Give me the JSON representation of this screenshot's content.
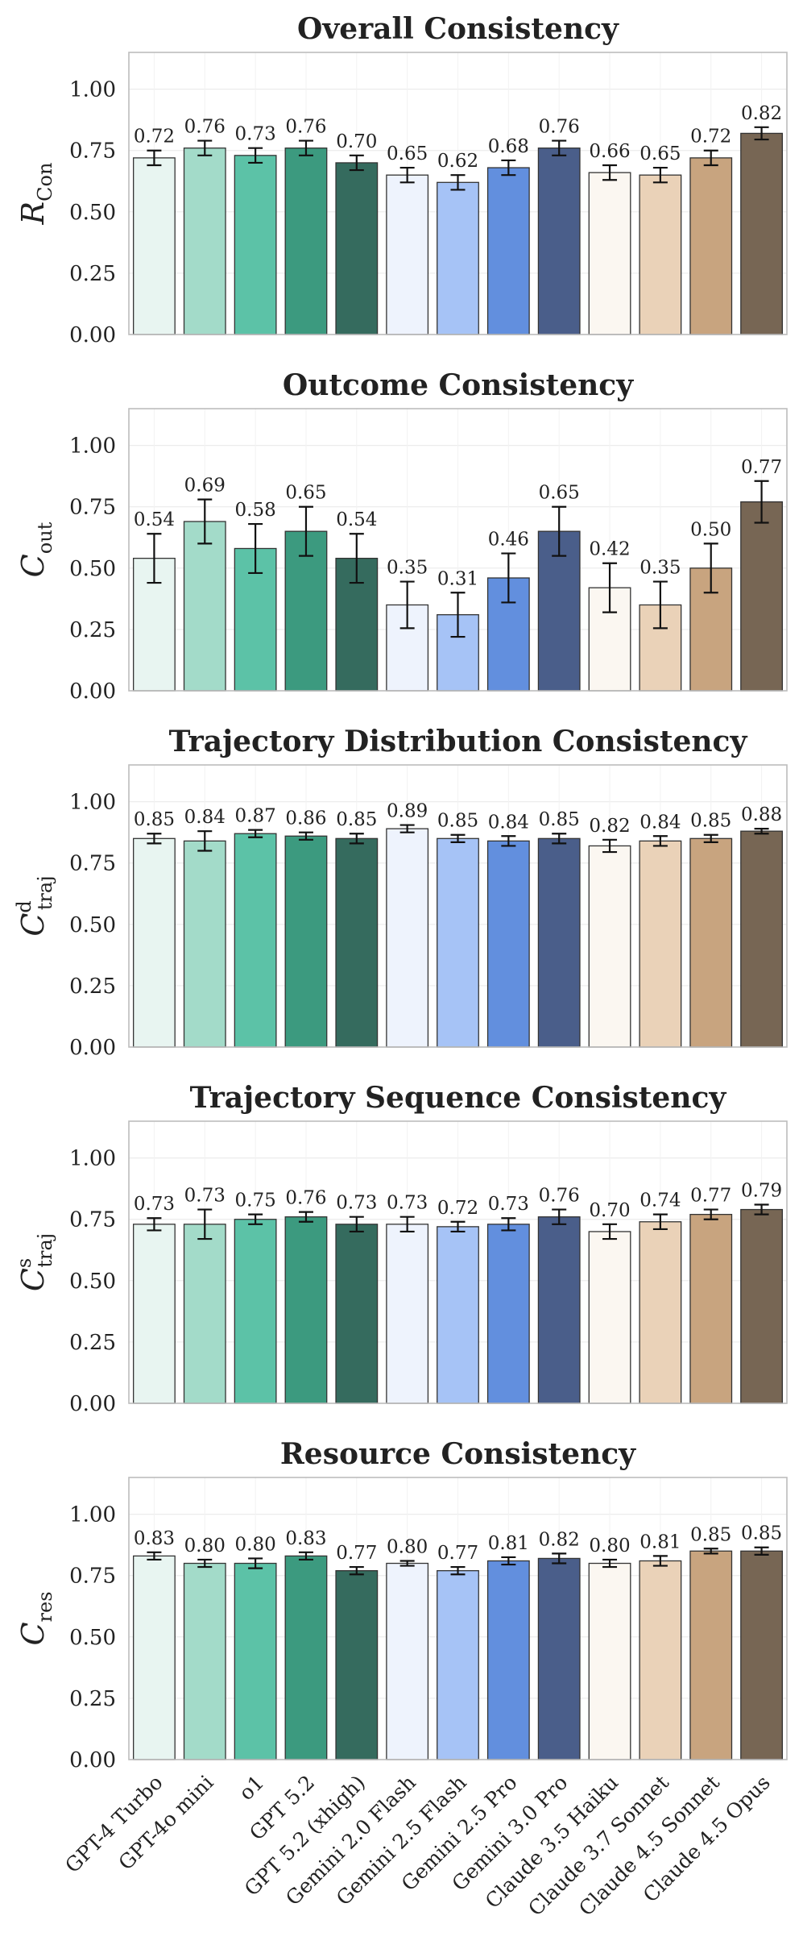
{
  "colors": [
    "#e8f5f1",
    "#a3dbc9",
    "#5cc2a7",
    "#3c9a7f",
    "#356b5e",
    "#eef3fd",
    "#a6c3f6",
    "#628fde",
    "#4a5e8a",
    "#fbf7f1",
    "#ead2b8",
    "#c8a47f",
    "#776654"
  ],
  "chart_data": [
    {
      "type": "bar",
      "title": "Overall Consistency",
      "ylabel": {
        "main": "R",
        "sub": "Con",
        "sup": ""
      },
      "ylim": [
        0,
        1.15
      ],
      "yticks": [
        "0.00",
        "0.25",
        "0.50",
        "0.75",
        "1.00"
      ],
      "grid": true,
      "categories": [
        "GPT-4 Turbo",
        "GPT-4o mini",
        "o1",
        "GPT 5.2",
        "GPT 5.2 (xhigh)",
        "Gemini 2.0 Flash",
        "Gemini 2.5 Flash",
        "Gemini 2.5 Pro",
        "Gemini 3.0 Pro",
        "Claude 3.5 Haiku",
        "Claude 3.7 Sonnet",
        "Claude 4.5 Sonnet",
        "Claude 4.5 Opus"
      ],
      "values": [
        0.72,
        0.76,
        0.73,
        0.76,
        0.7,
        0.65,
        0.62,
        0.68,
        0.76,
        0.66,
        0.65,
        0.72,
        0.82
      ],
      "errors": [
        0.03,
        0.03,
        0.03,
        0.03,
        0.03,
        0.03,
        0.03,
        0.03,
        0.03,
        0.03,
        0.03,
        0.03,
        0.025
      ],
      "labels": [
        "0.72",
        "0.76",
        "0.73",
        "0.76",
        "0.70",
        "0.65",
        "0.62",
        "0.68",
        "0.76",
        "0.66",
        "0.65",
        "0.72",
        "0.82"
      ]
    },
    {
      "type": "bar",
      "title": "Outcome Consistency",
      "ylabel": {
        "main": "C",
        "sub": "out",
        "sup": ""
      },
      "ylim": [
        0,
        1.15
      ],
      "yticks": [
        "0.00",
        "0.25",
        "0.50",
        "0.75",
        "1.00"
      ],
      "grid": true,
      "categories": [
        "GPT-4 Turbo",
        "GPT-4o mini",
        "o1",
        "GPT 5.2",
        "GPT 5.2 (xhigh)",
        "Gemini 2.0 Flash",
        "Gemini 2.5 Flash",
        "Gemini 2.5 Pro",
        "Gemini 3.0 Pro",
        "Claude 3.5 Haiku",
        "Claude 3.7 Sonnet",
        "Claude 4.5 Sonnet",
        "Claude 4.5 Opus"
      ],
      "values": [
        0.54,
        0.69,
        0.58,
        0.65,
        0.54,
        0.35,
        0.31,
        0.46,
        0.65,
        0.42,
        0.35,
        0.5,
        0.77
      ],
      "errors": [
        0.1,
        0.09,
        0.1,
        0.1,
        0.1,
        0.095,
        0.09,
        0.1,
        0.1,
        0.1,
        0.095,
        0.1,
        0.085
      ],
      "labels": [
        "0.54",
        "0.69",
        "0.58",
        "0.65",
        "0.54",
        "0.35",
        "0.31",
        "0.46",
        "0.65",
        "0.42",
        "0.35",
        "0.50",
        "0.77"
      ]
    },
    {
      "type": "bar",
      "title": "Trajectory Distribution Consistency",
      "ylabel": {
        "main": "C",
        "sub": "traj",
        "sup": "d"
      },
      "ylim": [
        0,
        1.15
      ],
      "yticks": [
        "0.00",
        "0.25",
        "0.50",
        "0.75",
        "1.00"
      ],
      "grid": true,
      "categories": [
        "GPT-4 Turbo",
        "GPT-4o mini",
        "o1",
        "GPT 5.2",
        "GPT 5.2 (xhigh)",
        "Gemini 2.0 Flash",
        "Gemini 2.5 Flash",
        "Gemini 2.5 Pro",
        "Gemini 3.0 Pro",
        "Claude 3.5 Haiku",
        "Claude 3.7 Sonnet",
        "Claude 4.5 Sonnet",
        "Claude 4.5 Opus"
      ],
      "values": [
        0.85,
        0.84,
        0.87,
        0.86,
        0.85,
        0.89,
        0.85,
        0.84,
        0.85,
        0.82,
        0.84,
        0.85,
        0.88
      ],
      "errors": [
        0.02,
        0.04,
        0.015,
        0.015,
        0.02,
        0.015,
        0.015,
        0.02,
        0.02,
        0.025,
        0.02,
        0.015,
        0.01
      ],
      "labels": [
        "0.85",
        "0.84",
        "0.87",
        "0.86",
        "0.85",
        "0.89",
        "0.85",
        "0.84",
        "0.85",
        "0.82",
        "0.84",
        "0.85",
        "0.88"
      ]
    },
    {
      "type": "bar",
      "title": "Trajectory Sequence Consistency",
      "ylabel": {
        "main": "C",
        "sub": "traj",
        "sup": "s"
      },
      "ylim": [
        0,
        1.15
      ],
      "yticks": [
        "0.00",
        "0.25",
        "0.50",
        "0.75",
        "1.00"
      ],
      "grid": true,
      "categories": [
        "GPT-4 Turbo",
        "GPT-4o mini",
        "o1",
        "GPT 5.2",
        "GPT 5.2 (xhigh)",
        "Gemini 2.0 Flash",
        "Gemini 2.5 Flash",
        "Gemini 2.5 Pro",
        "Gemini 3.0 Pro",
        "Claude 3.5 Haiku",
        "Claude 3.7 Sonnet",
        "Claude 4.5 Sonnet",
        "Claude 4.5 Opus"
      ],
      "values": [
        0.73,
        0.73,
        0.75,
        0.76,
        0.73,
        0.73,
        0.72,
        0.73,
        0.76,
        0.7,
        0.74,
        0.77,
        0.79
      ],
      "errors": [
        0.025,
        0.06,
        0.02,
        0.02,
        0.03,
        0.03,
        0.02,
        0.025,
        0.03,
        0.03,
        0.03,
        0.02,
        0.02
      ],
      "labels": [
        "0.73",
        "0.73",
        "0.75",
        "0.76",
        "0.73",
        "0.73",
        "0.72",
        "0.73",
        "0.76",
        "0.70",
        "0.74",
        "0.77",
        "0.79"
      ]
    },
    {
      "type": "bar",
      "title": "Resource Consistency",
      "ylabel": {
        "main": "C",
        "sub": "res",
        "sup": ""
      },
      "ylim": [
        0,
        1.15
      ],
      "yticks": [
        "0.00",
        "0.25",
        "0.50",
        "0.75",
        "1.00"
      ],
      "grid": true,
      "categories": [
        "GPT-4 Turbo",
        "GPT-4o mini",
        "o1",
        "GPT 5.2",
        "GPT 5.2 (xhigh)",
        "Gemini 2.0 Flash",
        "Gemini 2.5 Flash",
        "Gemini 2.5 Pro",
        "Gemini 3.0 Pro",
        "Claude 3.5 Haiku",
        "Claude 3.7 Sonnet",
        "Claude 4.5 Sonnet",
        "Claude 4.5 Opus"
      ],
      "values": [
        0.83,
        0.8,
        0.8,
        0.83,
        0.77,
        0.8,
        0.77,
        0.81,
        0.82,
        0.8,
        0.81,
        0.85,
        0.85
      ],
      "errors": [
        0.015,
        0.015,
        0.02,
        0.015,
        0.015,
        0.01,
        0.015,
        0.015,
        0.02,
        0.015,
        0.02,
        0.01,
        0.015
      ],
      "labels": [
        "0.83",
        "0.80",
        "0.80",
        "0.83",
        "0.77",
        "0.80",
        "0.77",
        "0.81",
        "0.82",
        "0.80",
        "0.81",
        "0.85",
        "0.85"
      ]
    }
  ]
}
